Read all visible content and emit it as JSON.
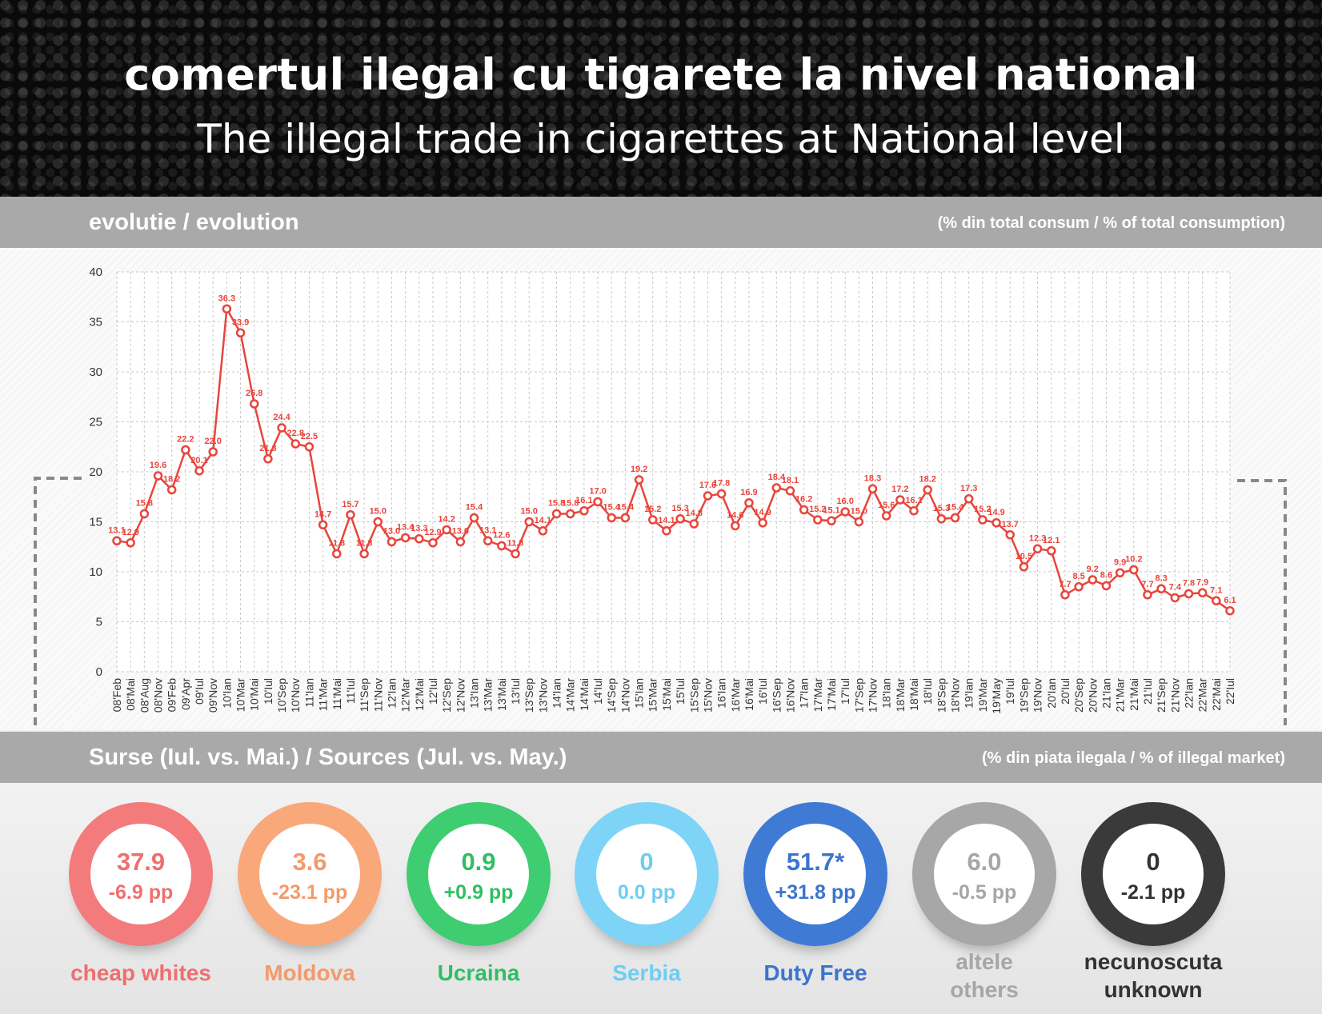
{
  "header": {
    "title_ro": "comertul ilegal cu tigarete la nivel national",
    "title_en": "The illegal trade in cigarettes at National level"
  },
  "section_evolution": {
    "title": "evolutie / evolution",
    "unit": "(% din total consum / % of total consumption)"
  },
  "section_sources": {
    "title": "Surse (Iul. vs. Mai.) / Sources (Jul. vs. May.)",
    "unit": "(% din piata ilegala / % of illegal market)"
  },
  "chart_data": {
    "type": "line",
    "ylim": [
      0,
      40
    ],
    "yticks": [
      0,
      5,
      10,
      15,
      20,
      25,
      30,
      35,
      40
    ],
    "grid": true,
    "color": "#e8453c",
    "x": [
      "08'Feb",
      "08'Mai",
      "08'Aug",
      "08'Nov",
      "09'Feb",
      "09'Apr",
      "09'Iul",
      "09'Nov",
      "10'Ian",
      "10'Mar",
      "10'Mai",
      "10'Iul",
      "10'Sep",
      "10'Nov",
      "11'Ian",
      "11'Mar",
      "11'Mai",
      "11'Iul",
      "11'Sep",
      "11'Nov",
      "12'Ian",
      "12'Mar",
      "12'Mai",
      "12'Iul",
      "12'Sep",
      "12'Nov",
      "13'Ian",
      "13'Mar",
      "13'Mai",
      "13'Iul",
      "13'Sep",
      "13'Nov",
      "14'Ian",
      "14'Mar",
      "14'Mai",
      "14'Iul",
      "14'Sep",
      "14'Nov",
      "15'Ian",
      "15'Mar",
      "15'Mai",
      "15'Iul",
      "15'Sep",
      "15'Nov",
      "16'Ian",
      "16'Mar",
      "16'Mai",
      "16'Iul",
      "16'Sep",
      "16'Nov",
      "17'Ian",
      "17'Mar",
      "17'Mai",
      "17'Iul",
      "17'Sep",
      "17'Nov",
      "18'Ian",
      "18'Mar",
      "18'Mai",
      "18'Iul",
      "18'Sep",
      "18'Nov",
      "19'Ian",
      "19'Mar",
      "19'May",
      "19'Iul",
      "19'Sep",
      "19'Nov",
      "20'Ian",
      "20'Iul",
      "20'Sep",
      "20'Nov",
      "21'Ian",
      "21'Mar",
      "21'Mai",
      "21'Iul",
      "21'Sep",
      "21'Nov",
      "22'Ian",
      "22'Mar",
      "22'Mai",
      "22'Iul"
    ],
    "values": [
      13.1,
      12.9,
      15.8,
      19.6,
      18.2,
      22.2,
      20.1,
      22.0,
      36.3,
      33.9,
      26.8,
      21.3,
      24.4,
      22.8,
      22.5,
      14.7,
      11.8,
      15.7,
      11.8,
      15.0,
      13.0,
      13.4,
      13.3,
      12.9,
      14.2,
      13.0,
      15.4,
      13.1,
      12.6,
      11.8,
      15.0,
      14.1,
      15.8,
      15.8,
      16.1,
      17.0,
      15.4,
      15.4,
      19.2,
      15.2,
      14.1,
      15.3,
      14.8,
      17.6,
      17.8,
      14.6,
      16.9,
      14.9,
      18.4,
      18.1,
      16.2,
      15.2,
      15.1,
      16.0,
      15.0,
      18.3,
      15.6,
      17.2,
      16.1,
      18.2,
      15.3,
      15.4,
      17.3,
      15.2,
      14.9,
      13.7,
      10.5,
      12.3,
      12.1,
      7.7,
      8.5,
      9.2,
      8.6,
      9.9,
      10.2,
      7.7,
      8.3,
      7.4,
      7.8,
      7.9,
      7.1,
      6.1
    ]
  },
  "sources": [
    {
      "value": "37.9",
      "change": "-6.9 pp",
      "label": "cheap whites",
      "label2": "",
      "color": "#f47b7b",
      "text_color": "#ef6f6f"
    },
    {
      "value": "3.6",
      "change": "-23.1 pp",
      "label": "Moldova",
      "label2": "",
      "color": "#f9a87a",
      "text_color": "#f39a6b"
    },
    {
      "value": "0.9",
      "change": "+0.9 pp",
      "label": "Ucraina",
      "label2": "",
      "color": "#3fcd72",
      "text_color": "#2fbf62"
    },
    {
      "value": "0",
      "change": "0.0 pp",
      "label": "Serbia",
      "label2": "",
      "color": "#7dd4f7",
      "text_color": "#6fcdf2"
    },
    {
      "value": "51.7*",
      "change": "+31.8 pp",
      "label": "Duty Free",
      "label2": "",
      "color": "#3f7bd5",
      "text_color": "#3b74cf"
    },
    {
      "value": "6.0",
      "change": "-0.5 pp",
      "label": "altele",
      "label2": "others",
      "color": "#a7a7a7",
      "text_color": "#a6a6a6"
    },
    {
      "value": "0",
      "change": "-2.1 pp",
      "label": "necunoscuta",
      "label2": "unknown",
      "color": "#3a3a3a",
      "text_color": "#333333"
    }
  ]
}
